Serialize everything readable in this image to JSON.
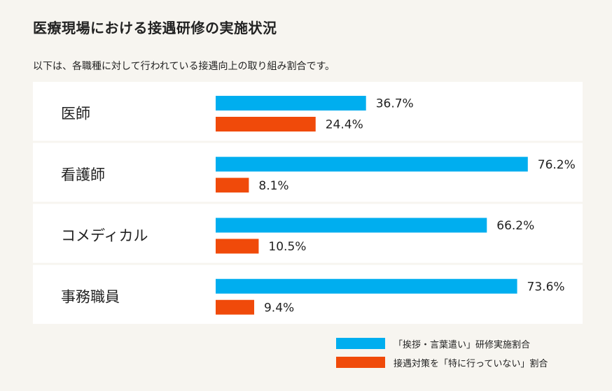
{
  "title": "医療現場における接遇研修の実施状況",
  "subtitle": "以下は、各職種に対して行われている接遇向上の取り組み割合です。",
  "colors": {
    "series_blue": "#00aeef",
    "series_orange": "#f04a0a",
    "panel_bg": "#ffffff",
    "page_bg": "#f7f5f0"
  },
  "chart_data": {
    "type": "bar",
    "orientation": "horizontal",
    "categories": [
      "医師",
      "看護師",
      "コメディカル",
      "事務職員"
    ],
    "series": [
      {
        "name": "「挨拶・言葉遣い」研修実施割合",
        "values": [
          36.7,
          76.2,
          66.2,
          73.6
        ],
        "color": "#00aeef"
      },
      {
        "name": "接遇対策を「特に行っていない」割合",
        "values": [
          24.4,
          8.1,
          10.5,
          9.4
        ],
        "color": "#f04a0a"
      }
    ],
    "value_labels": [
      [
        "36.7%",
        "76.2%",
        "66.2%",
        "73.6%"
      ],
      [
        "24.4%",
        "8.1%",
        "10.5%",
        "9.4%"
      ]
    ],
    "xlim": [
      0,
      100
    ],
    "unit": "%",
    "grid": false,
    "legend_position": "bottom-right"
  },
  "legend": [
    {
      "label": "「挨拶・言葉遣い」研修実施割合",
      "color": "#00aeef"
    },
    {
      "label": "接遇対策を「特に行っていない」割合",
      "color": "#f04a0a"
    }
  ]
}
